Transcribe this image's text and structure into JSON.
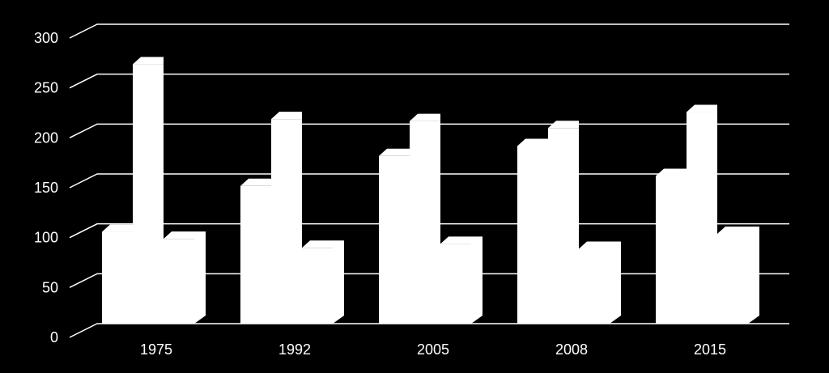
{
  "chart_data": {
    "type": "bar",
    "title": "",
    "xlabel": "",
    "ylabel": "",
    "categories": [
      "1975",
      "1992",
      "2005",
      "2008",
      "2015"
    ],
    "series": [
      {
        "values": [
          92,
          138,
          168,
          178,
          148
        ]
      },
      {
        "values": [
          260,
          205,
          203,
          196,
          212
        ]
      },
      {
        "values": [
          85,
          76,
          80,
          75,
          90
        ]
      }
    ],
    "ylim": [
      0,
      300
    ],
    "yticks": [
      0,
      50,
      100,
      150,
      200,
      250,
      300
    ],
    "grid": true,
    "legend": "none",
    "bar_color": "#ffffff",
    "background": "#000000",
    "gridline_color": "#ffffff",
    "text_color": "#ffffff"
  }
}
